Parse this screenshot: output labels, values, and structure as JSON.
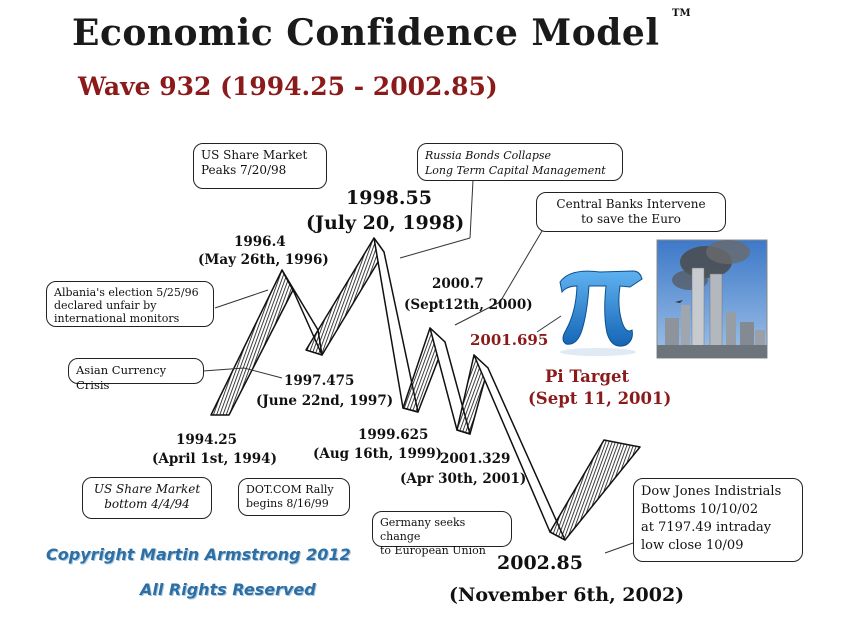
{
  "header": {
    "title": "Economic Confidence Model",
    "trademark": "TM",
    "subtitle": "Wave 932 (1994.25 - 2002.85)"
  },
  "callouts": {
    "us_share_peak": [
      "US Share Market",
      "Peaks 7/20/98"
    ],
    "russia": [
      "Russia Bonds Collapse",
      "Long Term Capital Management"
    ],
    "central_banks": [
      "Central Banks Intervene",
      "to save the Euro"
    ],
    "albania": [
      "Albania's election 5/25/96",
      "declared unfair by",
      "international monitors"
    ],
    "asian_crisis": "Asian Currency Crisis",
    "us_share_bottom": [
      "US Share Market",
      "bottom  4/4/94"
    ],
    "dotcom": [
      "DOT.COM  Rally",
      "begins 8/16/99"
    ],
    "germany": [
      "Germany seeks change",
      "to European Union"
    ],
    "dow_jones": [
      "Dow Jones Indistrials",
      "Bottoms 10/10/02",
      "at 7197.49 intraday",
      "low close 10/09"
    ]
  },
  "dates": {
    "d1998_55": "1998.55",
    "d1998_label": "(July 20, 1998)",
    "d1996_4": "1996.4",
    "d1996_label": "(May 26th, 1996)",
    "d2000_7": "2000.7",
    "d2000_label": "(Sept12th, 2000)",
    "d2001_695": "2001.695",
    "pi_target": "Pi Target",
    "pi_label": "(Sept 11, 2001)",
    "d1997_475": "1997.475",
    "d1997_label": "(June 22nd, 1997)",
    "d1994_25": "1994.25",
    "d1994_label": "(April 1st, 1994)",
    "d1999_625": "1999.625",
    "d1999_label": "(Aug 16th, 1999)",
    "d2001_329": "2001.329",
    "d2001_label": "(Apr 30th, 2001)",
    "d2002_85": "2002.85",
    "d2002_label": "(November 6th, 2002)"
  },
  "footer": {
    "copyright": "Copyright Martin Armstrong 2012",
    "rights": "All Rights Reserved"
  },
  "colors": {
    "title": "#1a1a1a",
    "subtitle": "#8b1a1a",
    "pi_blue": "#2a86d4",
    "copyright_blue": "#2e6fa3"
  }
}
